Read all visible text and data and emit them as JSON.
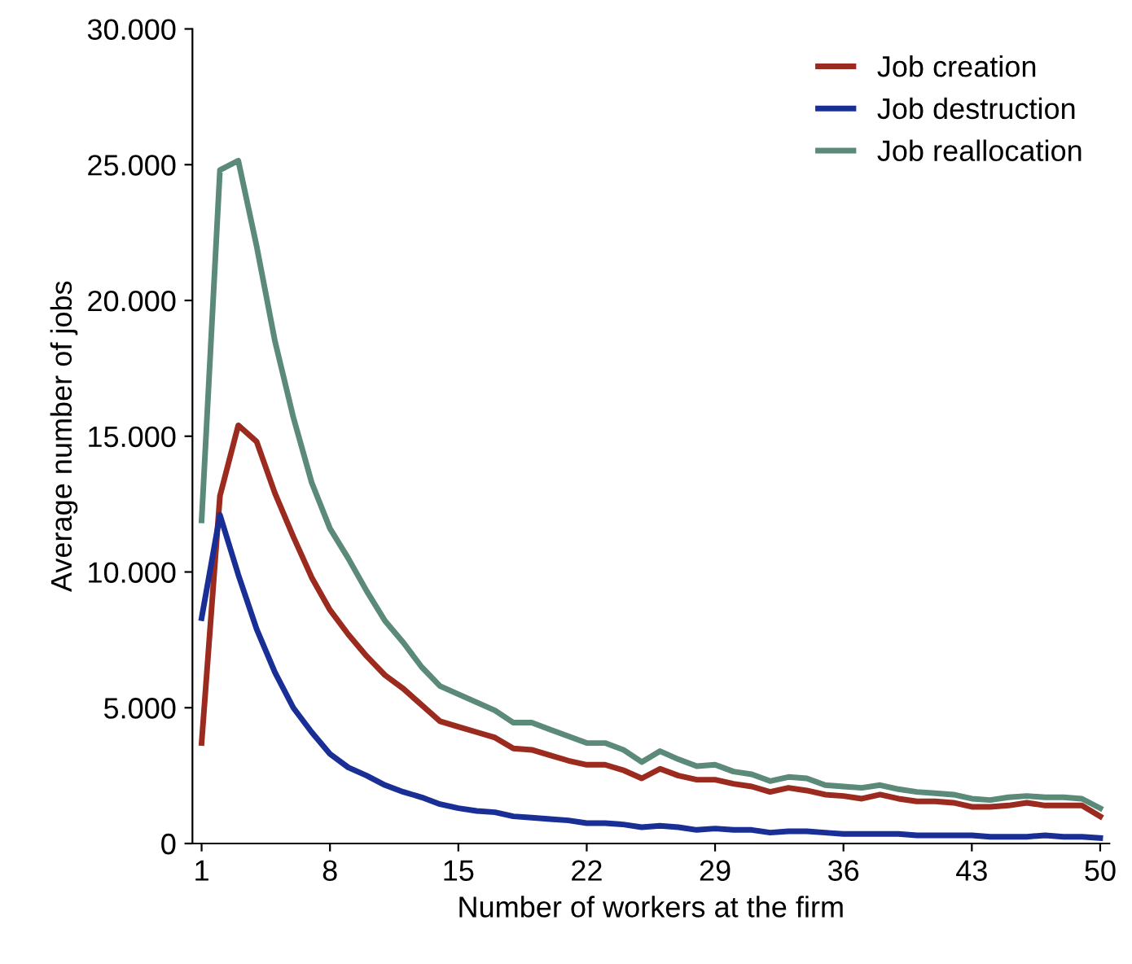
{
  "chart_data": {
    "type": "line",
    "xlabel": "Number of workers at the firm",
    "ylabel": "Average number of jobs",
    "x": [
      1,
      2,
      3,
      4,
      5,
      6,
      7,
      8,
      9,
      10,
      11,
      12,
      13,
      14,
      15,
      16,
      17,
      18,
      19,
      20,
      21,
      22,
      23,
      24,
      25,
      26,
      27,
      28,
      29,
      30,
      31,
      32,
      33,
      34,
      35,
      36,
      37,
      38,
      39,
      40,
      41,
      42,
      43,
      44,
      45,
      46,
      47,
      48,
      49,
      50
    ],
    "series": [
      {
        "name": "Job creation",
        "color": "#9b2a1f",
        "values": [
          3700,
          12800,
          15400,
          14800,
          12900,
          11300,
          9800,
          8600,
          7700,
          6900,
          6200,
          5700,
          5100,
          4500,
          4300,
          4100,
          3900,
          3500,
          3450,
          3250,
          3050,
          2900,
          2900,
          2700,
          2400,
          2750,
          2500,
          2350,
          2350,
          2200,
          2100,
          1900,
          2050,
          1950,
          1800,
          1750,
          1650,
          1800,
          1650,
          1550,
          1550,
          1500,
          1350,
          1350,
          1400,
          1500,
          1400,
          1400,
          1400,
          1000
        ]
      },
      {
        "name": "Job destruction",
        "color": "#1a2f95",
        "values": [
          8300,
          12100,
          9900,
          7900,
          6300,
          5000,
          4100,
          3300,
          2800,
          2500,
          2150,
          1900,
          1700,
          1450,
          1300,
          1200,
          1150,
          1000,
          950,
          900,
          850,
          750,
          750,
          700,
          600,
          650,
          600,
          500,
          550,
          500,
          500,
          400,
          450,
          450,
          400,
          350,
          350,
          350,
          350,
          300,
          300,
          300,
          300,
          250,
          250,
          250,
          300,
          250,
          250,
          200
        ]
      },
      {
        "name": "Job reallocation",
        "color": "#5b8a78",
        "values": [
          11900,
          24800,
          25150,
          22000,
          18500,
          15700,
          13300,
          11600,
          10500,
          9300,
          8200,
          7400,
          6500,
          5800,
          5500,
          5200,
          4900,
          4450,
          4450,
          4200,
          3950,
          3700,
          3700,
          3450,
          3000,
          3400,
          3100,
          2850,
          2900,
          2650,
          2550,
          2300,
          2450,
          2400,
          2150,
          2100,
          2050,
          2150,
          2000,
          1900,
          1850,
          1800,
          1650,
          1600,
          1700,
          1750,
          1700,
          1700,
          1650,
          1300
        ]
      }
    ],
    "xlim": [
      0.5,
      50.5
    ],
    "xticks": [
      1,
      8,
      15,
      22,
      29,
      36,
      43,
      50
    ],
    "ylim": [
      0,
      30000
    ],
    "yticks": [
      {
        "value": 0,
        "label": "0"
      },
      {
        "value": 5000,
        "label": "5.000"
      },
      {
        "value": 10000,
        "label": "10.000"
      },
      {
        "value": 15000,
        "label": "15.000"
      },
      {
        "value": 20000,
        "label": "20.000"
      },
      {
        "value": 25000,
        "label": "25.000"
      },
      {
        "value": 30000,
        "label": "30.000"
      }
    ],
    "legend": "top right",
    "grid": false,
    "marker": "none",
    "line_style": "solid"
  }
}
